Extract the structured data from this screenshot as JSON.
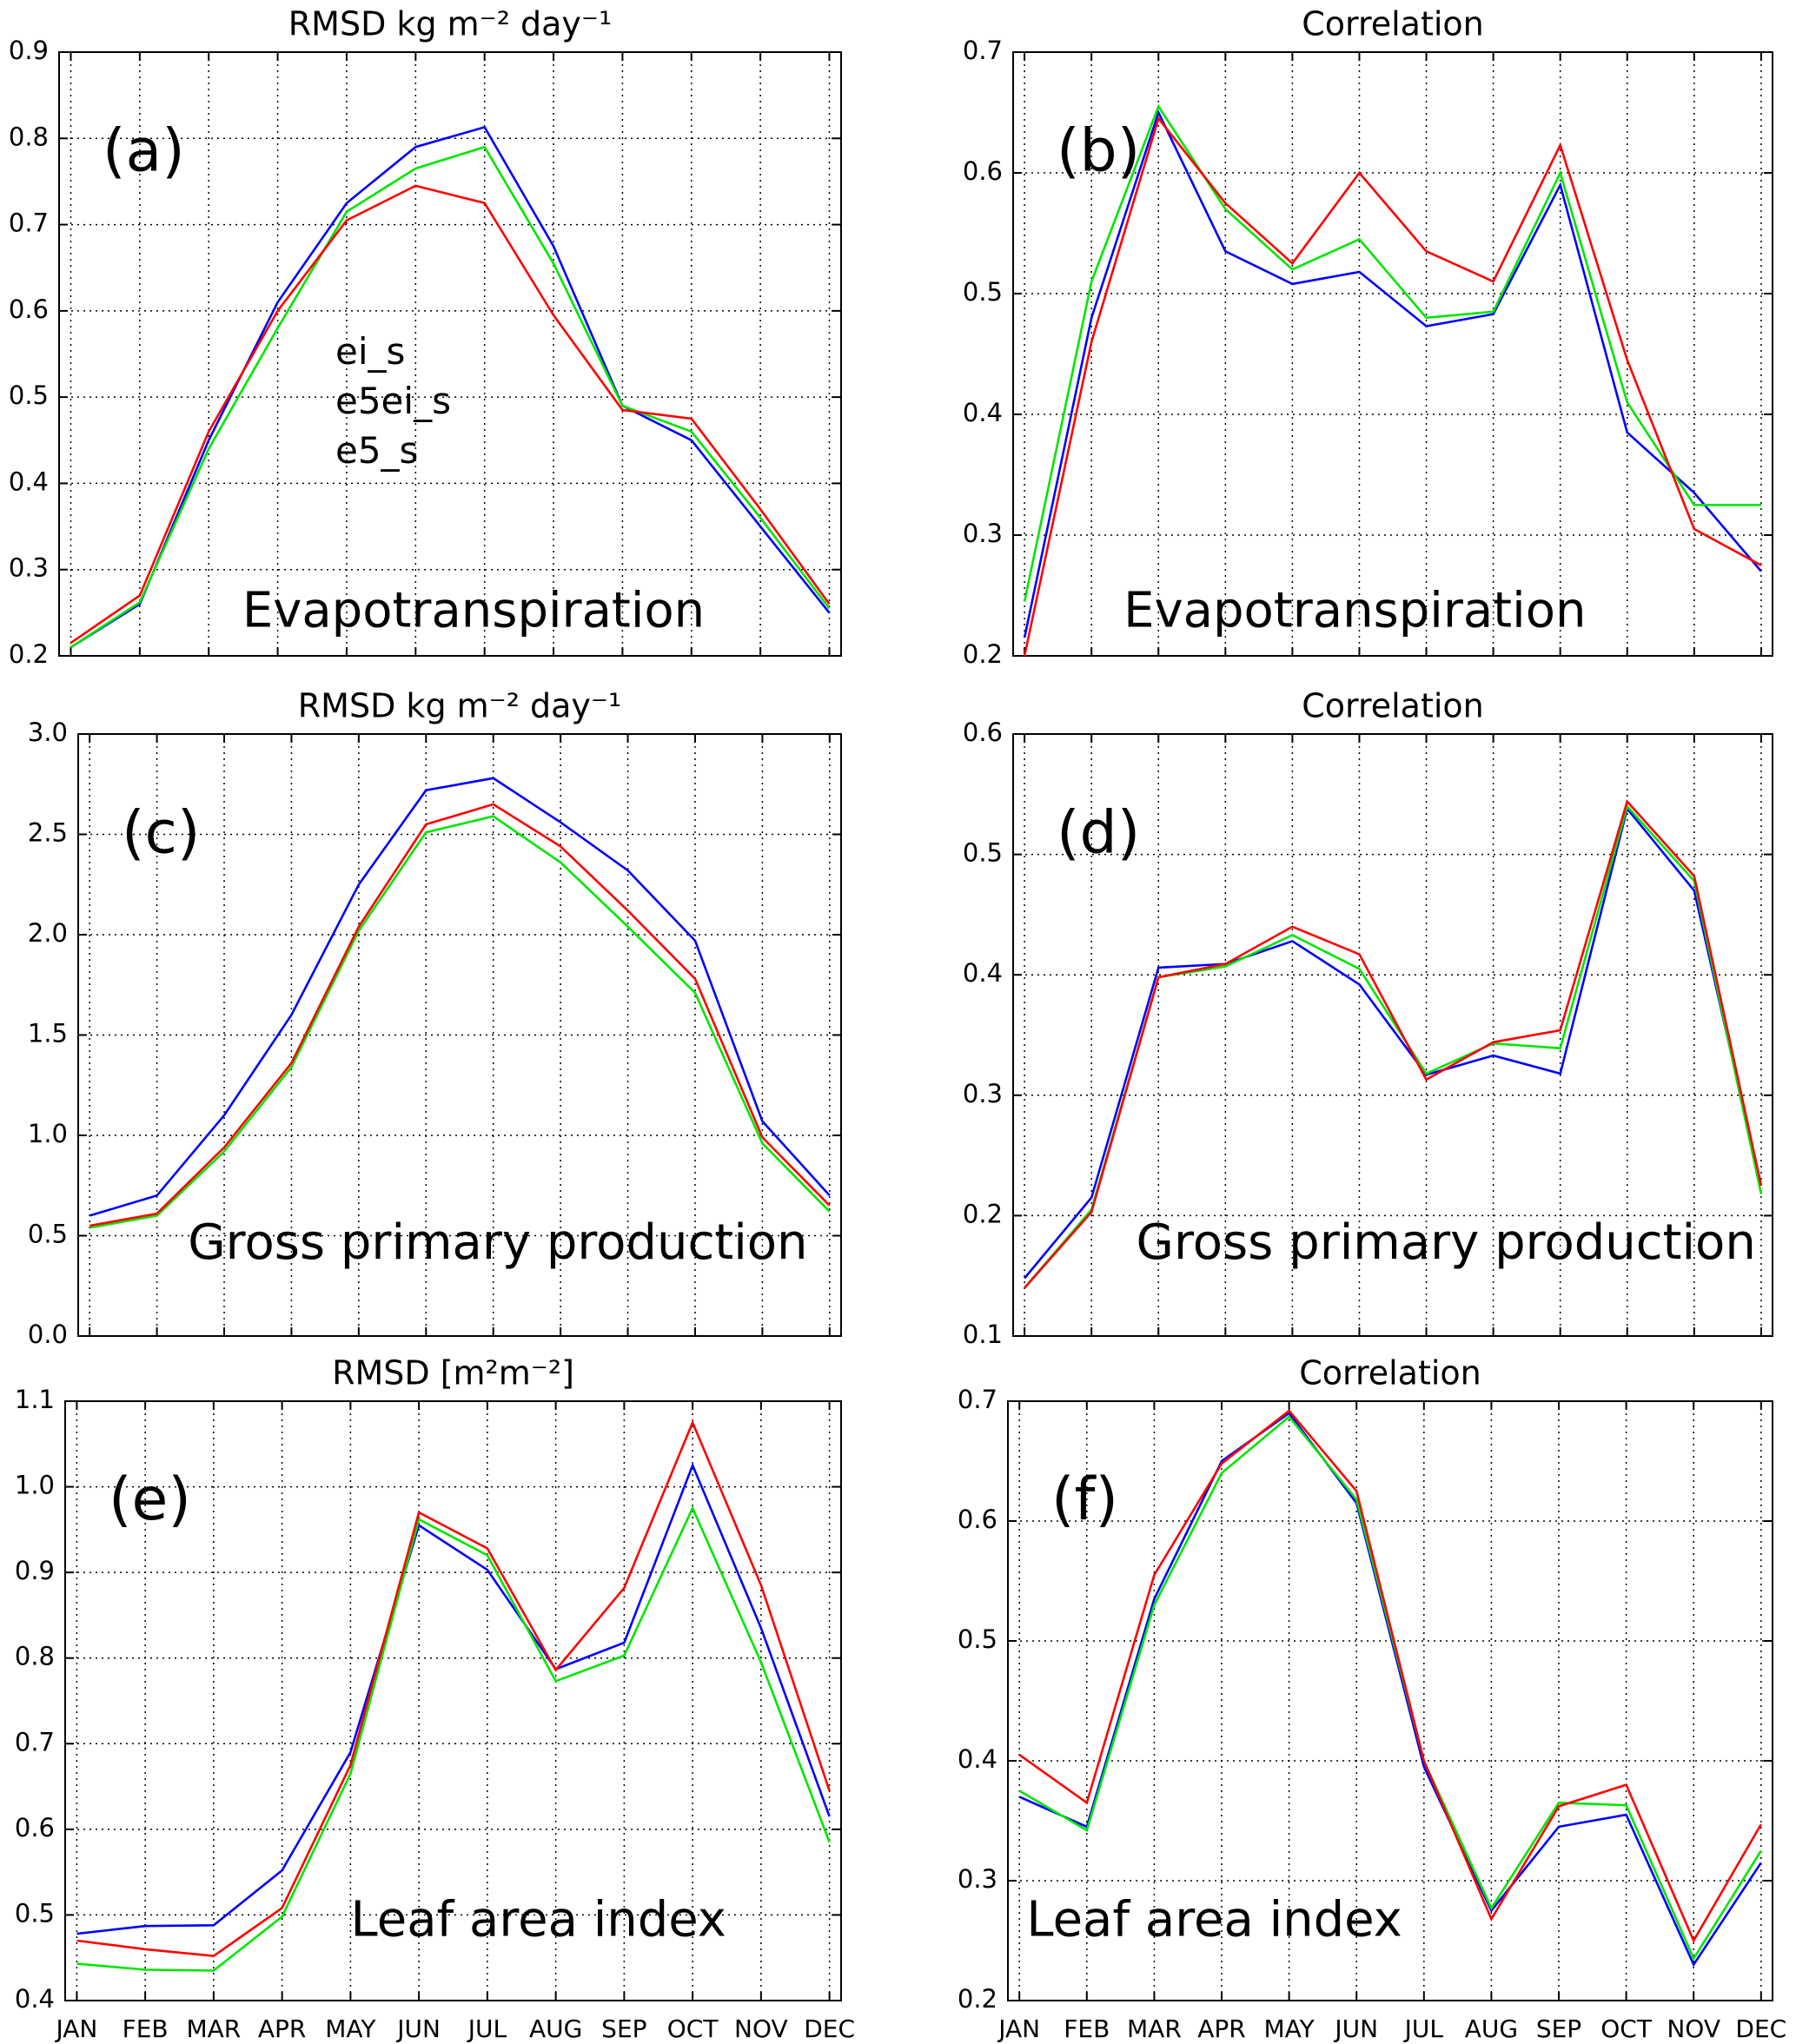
{
  "chart_data": [
    {
      "type": "line",
      "title": "RMSD kg m⁻² day⁻¹",
      "panel_label": "(a)",
      "annotation": "Evapotranspiration",
      "categories": [
        null,
        null,
        null,
        null,
        null,
        null,
        null,
        null,
        null,
        null,
        null,
        null
      ],
      "ylim": [
        0.2,
        0.9
      ],
      "yticks": [
        0.2,
        0.3,
        0.4,
        0.5,
        0.6,
        0.7,
        0.8,
        0.9
      ],
      "grid": true,
      "legend": "center-left",
      "series": [
        {
          "name": "ei_s",
          "color": "#0000ff",
          "values": [
            0.21,
            0.26,
            0.45,
            0.61,
            0.725,
            0.79,
            0.813,
            0.675,
            0.49,
            0.45,
            0.35,
            0.25
          ]
        },
        {
          "name": "e5ei_s",
          "color": "#00e600",
          "values": [
            0.21,
            0.262,
            0.44,
            0.58,
            0.715,
            0.765,
            0.79,
            0.655,
            0.49,
            0.46,
            0.36,
            0.255
          ]
        },
        {
          "name": "e5_s",
          "color": "#ff0000",
          "values": [
            0.215,
            0.27,
            0.46,
            0.6,
            0.705,
            0.745,
            0.725,
            0.595,
            0.485,
            0.475,
            0.37,
            0.26
          ]
        }
      ]
    },
    {
      "type": "line",
      "title": "Correlation",
      "panel_label": "(b)",
      "annotation": "Evapotranspiration",
      "categories": [
        null,
        null,
        null,
        null,
        null,
        null,
        null,
        null,
        null,
        null,
        null,
        null
      ],
      "ylim": [
        0.2,
        0.7
      ],
      "yticks": [
        0.2,
        0.3,
        0.4,
        0.5,
        0.6,
        0.7
      ],
      "grid": true,
      "series": [
        {
          "color": "#0000ff",
          "values": [
            0.215,
            0.48,
            0.65,
            0.535,
            0.508,
            0.518,
            0.473,
            0.483,
            0.59,
            0.385,
            0.335,
            0.27
          ]
        },
        {
          "color": "#00e600",
          "values": [
            0.245,
            0.51,
            0.655,
            0.57,
            0.52,
            0.545,
            0.48,
            0.485,
            0.6,
            0.41,
            0.325,
            0.325
          ]
        },
        {
          "color": "#ff0000",
          "values": [
            0.2,
            0.46,
            0.645,
            0.575,
            0.525,
            0.6,
            0.535,
            0.51,
            0.623,
            0.445,
            0.305,
            0.275
          ]
        }
      ]
    },
    {
      "type": "line",
      "title": "RMSD kg m⁻² day⁻¹",
      "panel_label": "(c)",
      "annotation": "Gross primary production",
      "categories": [
        null,
        null,
        null,
        null,
        null,
        null,
        null,
        null,
        null,
        null,
        null,
        null
      ],
      "ylim": [
        0,
        3
      ],
      "yticks": [
        {
          "value": 0,
          "label": "0.0"
        },
        0.5,
        {
          "value": 1,
          "label": "1.0"
        },
        1.5,
        {
          "value": 2,
          "label": "2.0"
        },
        2.5,
        {
          "value": 3,
          "label": "3.0"
        }
      ],
      "grid": true,
      "series": [
        {
          "color": "#0000ff",
          "values": [
            0.6,
            0.7,
            1.1,
            1.6,
            2.25,
            2.72,
            2.78,
            2.56,
            2.32,
            1.97,
            1.07,
            0.7
          ]
        },
        {
          "color": "#00e600",
          "values": [
            0.54,
            0.6,
            0.92,
            1.34,
            2.02,
            2.51,
            2.59,
            2.36,
            2.04,
            1.71,
            0.96,
            0.62
          ]
        },
        {
          "color": "#ff0000",
          "values": [
            0.55,
            0.61,
            0.94,
            1.36,
            2.04,
            2.55,
            2.65,
            2.44,
            2.12,
            1.78,
            0.99,
            0.65
          ]
        }
      ]
    },
    {
      "type": "line",
      "title": "Correlation",
      "panel_label": "(d)",
      "annotation": "Gross primary production",
      "categories": [
        null,
        null,
        null,
        null,
        null,
        null,
        null,
        null,
        null,
        null,
        null,
        null
      ],
      "ylim": [
        0.1,
        0.6
      ],
      "yticks": [
        0.1,
        0.2,
        0.3,
        0.4,
        0.5,
        0.6
      ],
      "grid": true,
      "series": [
        {
          "color": "#0000ff",
          "values": [
            0.148,
            0.215,
            0.406,
            0.409,
            0.428,
            0.392,
            0.317,
            0.333,
            0.318,
            0.538,
            0.47,
            0.225
          ]
        },
        {
          "color": "#00e600",
          "values": [
            0.14,
            0.205,
            0.398,
            0.407,
            0.433,
            0.405,
            0.318,
            0.343,
            0.339,
            0.54,
            0.478,
            0.218
          ]
        },
        {
          "color": "#ff0000",
          "values": [
            0.14,
            0.203,
            0.398,
            0.409,
            0.44,
            0.417,
            0.313,
            0.344,
            0.354,
            0.544,
            0.482,
            0.225
          ]
        }
      ]
    },
    {
      "type": "line",
      "title": "RMSD [m²m⁻²]",
      "panel_label": "(e)",
      "annotation": "Leaf area index",
      "categories": [
        "JAN",
        "FEB",
        "MAR",
        "APR",
        "MAY",
        "JUN",
        "JUL",
        "AUG",
        "SEP",
        "OCT",
        "NOV",
        "DEC"
      ],
      "ylim": [
        0.4,
        1.1
      ],
      "yticks": [
        0.4,
        0.5,
        0.6,
        0.7,
        0.8,
        0.9,
        {
          "value": 1,
          "label": "1.0"
        },
        1.1
      ],
      "grid": true,
      "series": [
        {
          "color": "#0000ff",
          "values": [
            0.478,
            0.487,
            0.488,
            0.552,
            0.69,
            0.955,
            0.903,
            0.787,
            0.818,
            1.025,
            0.835,
            0.615
          ]
        },
        {
          "color": "#00e600",
          "values": [
            0.443,
            0.436,
            0.435,
            0.498,
            0.665,
            0.962,
            0.92,
            0.773,
            0.803,
            0.975,
            0.795,
            0.585
          ]
        },
        {
          "color": "#ff0000",
          "values": [
            0.47,
            0.46,
            0.452,
            0.508,
            0.675,
            0.97,
            0.928,
            0.786,
            0.882,
            1.075,
            0.885,
            0.645
          ]
        }
      ]
    },
    {
      "type": "line",
      "title": "Correlation",
      "panel_label": "(f)",
      "annotation": "Leaf area index",
      "categories": [
        "JAN",
        "FEB",
        "MAR",
        "APR",
        "MAY",
        "JUN",
        "JUL",
        "AUG",
        "SEP",
        "OCT",
        "NOV",
        "DEC"
      ],
      "ylim": [
        0.2,
        0.7
      ],
      "yticks": [
        0.2,
        0.3,
        0.4,
        0.5,
        0.6,
        0.7
      ],
      "grid": true,
      "series": [
        {
          "color": "#0000ff",
          "values": [
            0.37,
            0.345,
            0.535,
            0.65,
            0.69,
            0.615,
            0.395,
            0.275,
            0.345,
            0.355,
            0.23,
            0.315
          ]
        },
        {
          "color": "#00e600",
          "values": [
            0.375,
            0.342,
            0.53,
            0.64,
            0.687,
            0.618,
            0.4,
            0.277,
            0.365,
            0.363,
            0.235,
            0.325
          ]
        },
        {
          "color": "#ff0000",
          "values": [
            0.405,
            0.365,
            0.555,
            0.648,
            0.692,
            0.625,
            0.4,
            0.268,
            0.362,
            0.38,
            0.25,
            0.347
          ]
        }
      ]
    }
  ]
}
